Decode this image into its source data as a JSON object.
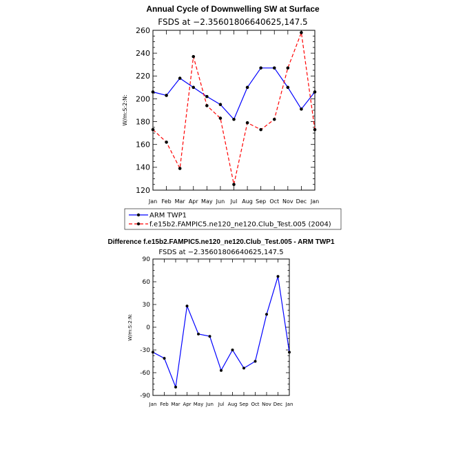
{
  "chart_data": [
    {
      "type": "line",
      "title": "Annual Cycle of Downwelling SW at Surface",
      "subtitle": "FSDS at −2.35601806640625,147.5",
      "ylabel": "W/m:S:2:N:",
      "categories": [
        "Jan",
        "Feb",
        "Mar",
        "Apr",
        "May",
        "Jun",
        "Jul",
        "Aug",
        "Sep",
        "Oct",
        "Nov",
        "Dec",
        "Jan"
      ],
      "ylim": [
        120,
        260
      ],
      "yticks": [
        120,
        140,
        160,
        180,
        200,
        220,
        240,
        260
      ],
      "series": [
        {
          "name": "ARM TWP1",
          "color": "#0000ff",
          "dash": "solid",
          "values": [
            206,
            203,
            218,
            210,
            202,
            195,
            182,
            210,
            227,
            227,
            210,
            191,
            206
          ]
        },
        {
          "name": "f.e15b2.FAMPIC5.ne120_ne120.Club_Test.005 (2004)",
          "color": "#ff0000",
          "dash": "dashed",
          "values": [
            173,
            162,
            139,
            237,
            194,
            183,
            125,
            179,
            173,
            182,
            227,
            258,
            173
          ]
        }
      ],
      "legend_position": "below"
    },
    {
      "type": "line",
      "title": "Difference f.e15b2.FAMPIC5.ne120_ne120.Club_Test.005 - ARM TWP1",
      "subtitle": "FSDS at −2.35601806640625,147.5",
      "ylabel": "W/m:S:2:N:",
      "categories": [
        "Jan",
        "Feb",
        "Mar",
        "Apr",
        "May",
        "Jun",
        "Jul",
        "Aug",
        "Sep",
        "Oct",
        "Nov",
        "Dec",
        "Jan"
      ],
      "ylim": [
        -90,
        90
      ],
      "yticks": [
        -90,
        -60,
        -30,
        0,
        30,
        60,
        90
      ],
      "series": [
        {
          "color": "#0000ff",
          "dash": "solid",
          "values": [
            -33,
            -41,
            -79,
            28,
            -9,
            -12,
            -57,
            -30,
            -54,
            -45,
            17,
            67,
            -33
          ]
        }
      ]
    }
  ]
}
